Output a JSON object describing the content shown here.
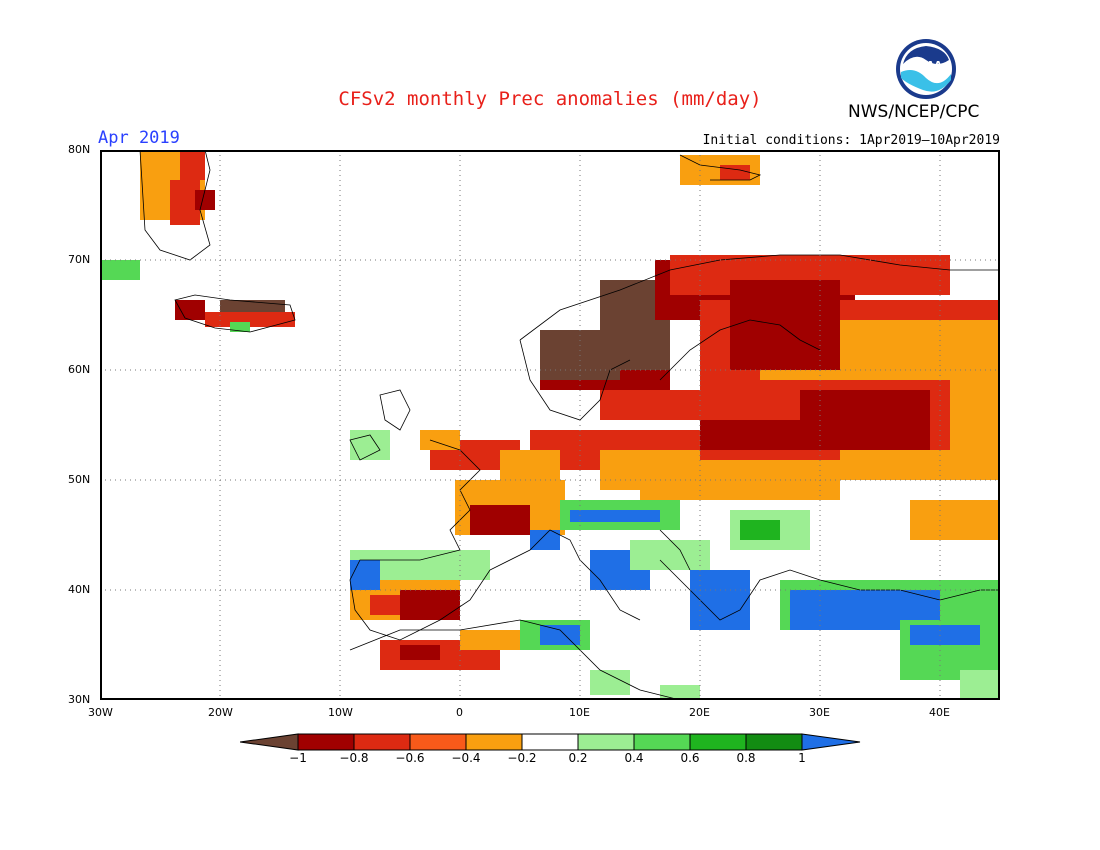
{
  "header": {
    "title": "CFSv2 monthly Prec anomalies (mm/day)",
    "month": "Apr 2019",
    "initial_conditions": "Initial conditions: 1Apr2019–10Apr2019",
    "agency": "NWS/NCEP/CPC",
    "logo_text": "NOAA"
  },
  "map": {
    "lat_labels": [
      "80N",
      "70N",
      "60N",
      "50N",
      "40N",
      "30N"
    ],
    "lon_labels": [
      "30W",
      "20W",
      "10W",
      "0",
      "10E",
      "20E",
      "30E",
      "40E"
    ],
    "lon_range": [
      -30,
      45
    ],
    "lat_range": [
      30,
      80
    ],
    "grid": "dotted"
  },
  "colorbar": {
    "labels": [
      "−1",
      "−0.8",
      "−0.6",
      "−0.4",
      "−0.2",
      "0.2",
      "0.4",
      "0.6",
      "0.8",
      "1"
    ],
    "colors": [
      "#6b4232",
      "#a00000",
      "#dd2a12",
      "#f85a1a",
      "#f99f10",
      "#ffffff",
      "#9cee93",
      "#55d855",
      "#1fb41f",
      "#128c12",
      "#1f6fe6"
    ]
  }
}
